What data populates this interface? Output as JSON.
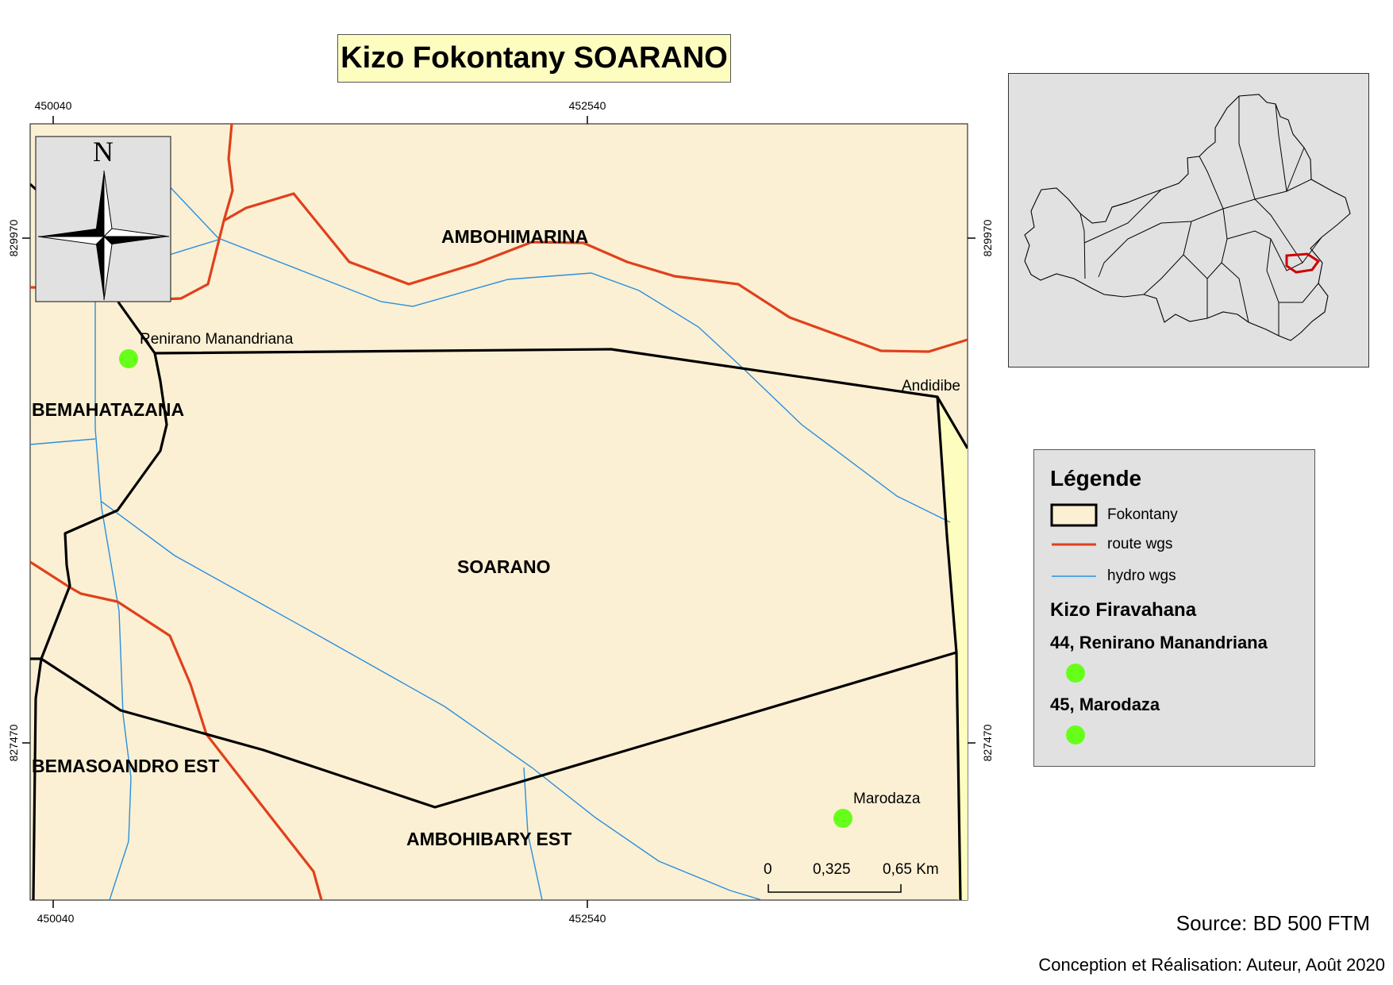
{
  "title": "Kizo Fokontany SOARANO",
  "ticks": {
    "x_left": "450040",
    "x_mid": "452540",
    "y_top": "829970",
    "y_bottom": "827470"
  },
  "north_arrow": {
    "letter": "N"
  },
  "areas": {
    "ambohimarina": "AMBOHIMARINA",
    "bemahatazana": "BEMAHATAZANA",
    "soarano": "SOARANO",
    "bemasoandro_est": "BEMASOANDRO EST",
    "ambohibary_est": "AMBOHIBARY EST"
  },
  "places": {
    "renirano": "Renirano Manandriana",
    "andidibe": "Andidibe",
    "marodaza": "Marodaza"
  },
  "scale_bar": {
    "t0": "0",
    "t1": "0,325",
    "t2": "0,65 Km"
  },
  "legend": {
    "title": "Légende",
    "fokontany": "Fokontany",
    "route": "route wgs",
    "hydro": "hydro wgs",
    "kizo_heading": "Kizo Firavahana",
    "item1": "44, Renirano Manandriana",
    "item2": "45, Marodaza"
  },
  "colors": {
    "land": "#fbf0d3",
    "route": "#e0401c",
    "hydro": "#2a8fe0",
    "boundary": "#000000",
    "point": "#66ff1a",
    "highlight": "#cc0000"
  },
  "source": "Source: BD 500 FTM",
  "credit": "Conception et Réalisation: Auteur, Août 2020"
}
